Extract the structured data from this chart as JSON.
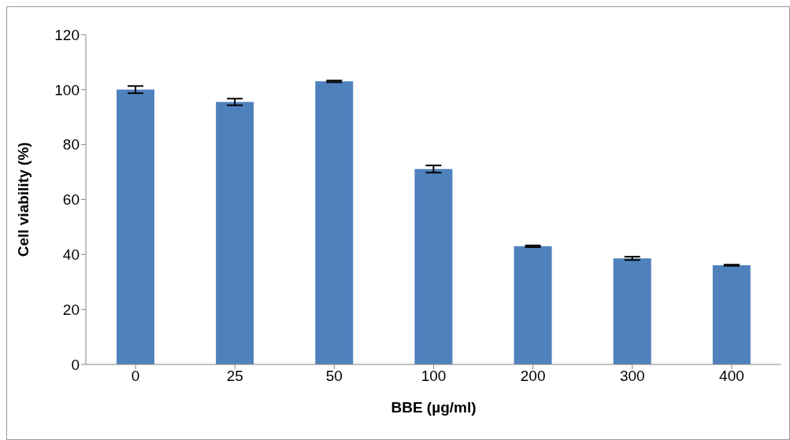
{
  "chart_data": {
    "type": "bar",
    "xlabel": "BBE (µg/ml)",
    "ylabel": "Cell viability (%)",
    "categories": [
      "0",
      "25",
      "50",
      "100",
      "200",
      "300",
      "400"
    ],
    "values": [
      100,
      95.5,
      103,
      71.1,
      43,
      38.6,
      36.1
    ],
    "errors": [
      1.3,
      1.2,
      0.3,
      1.3,
      0.3,
      0.6,
      0.2
    ],
    "color": "#4f81bd",
    "ylim": [
      0,
      120
    ],
    "yticks": [
      0,
      20,
      40,
      60,
      80,
      100,
      120
    ],
    "grid": false,
    "legend": false
  }
}
